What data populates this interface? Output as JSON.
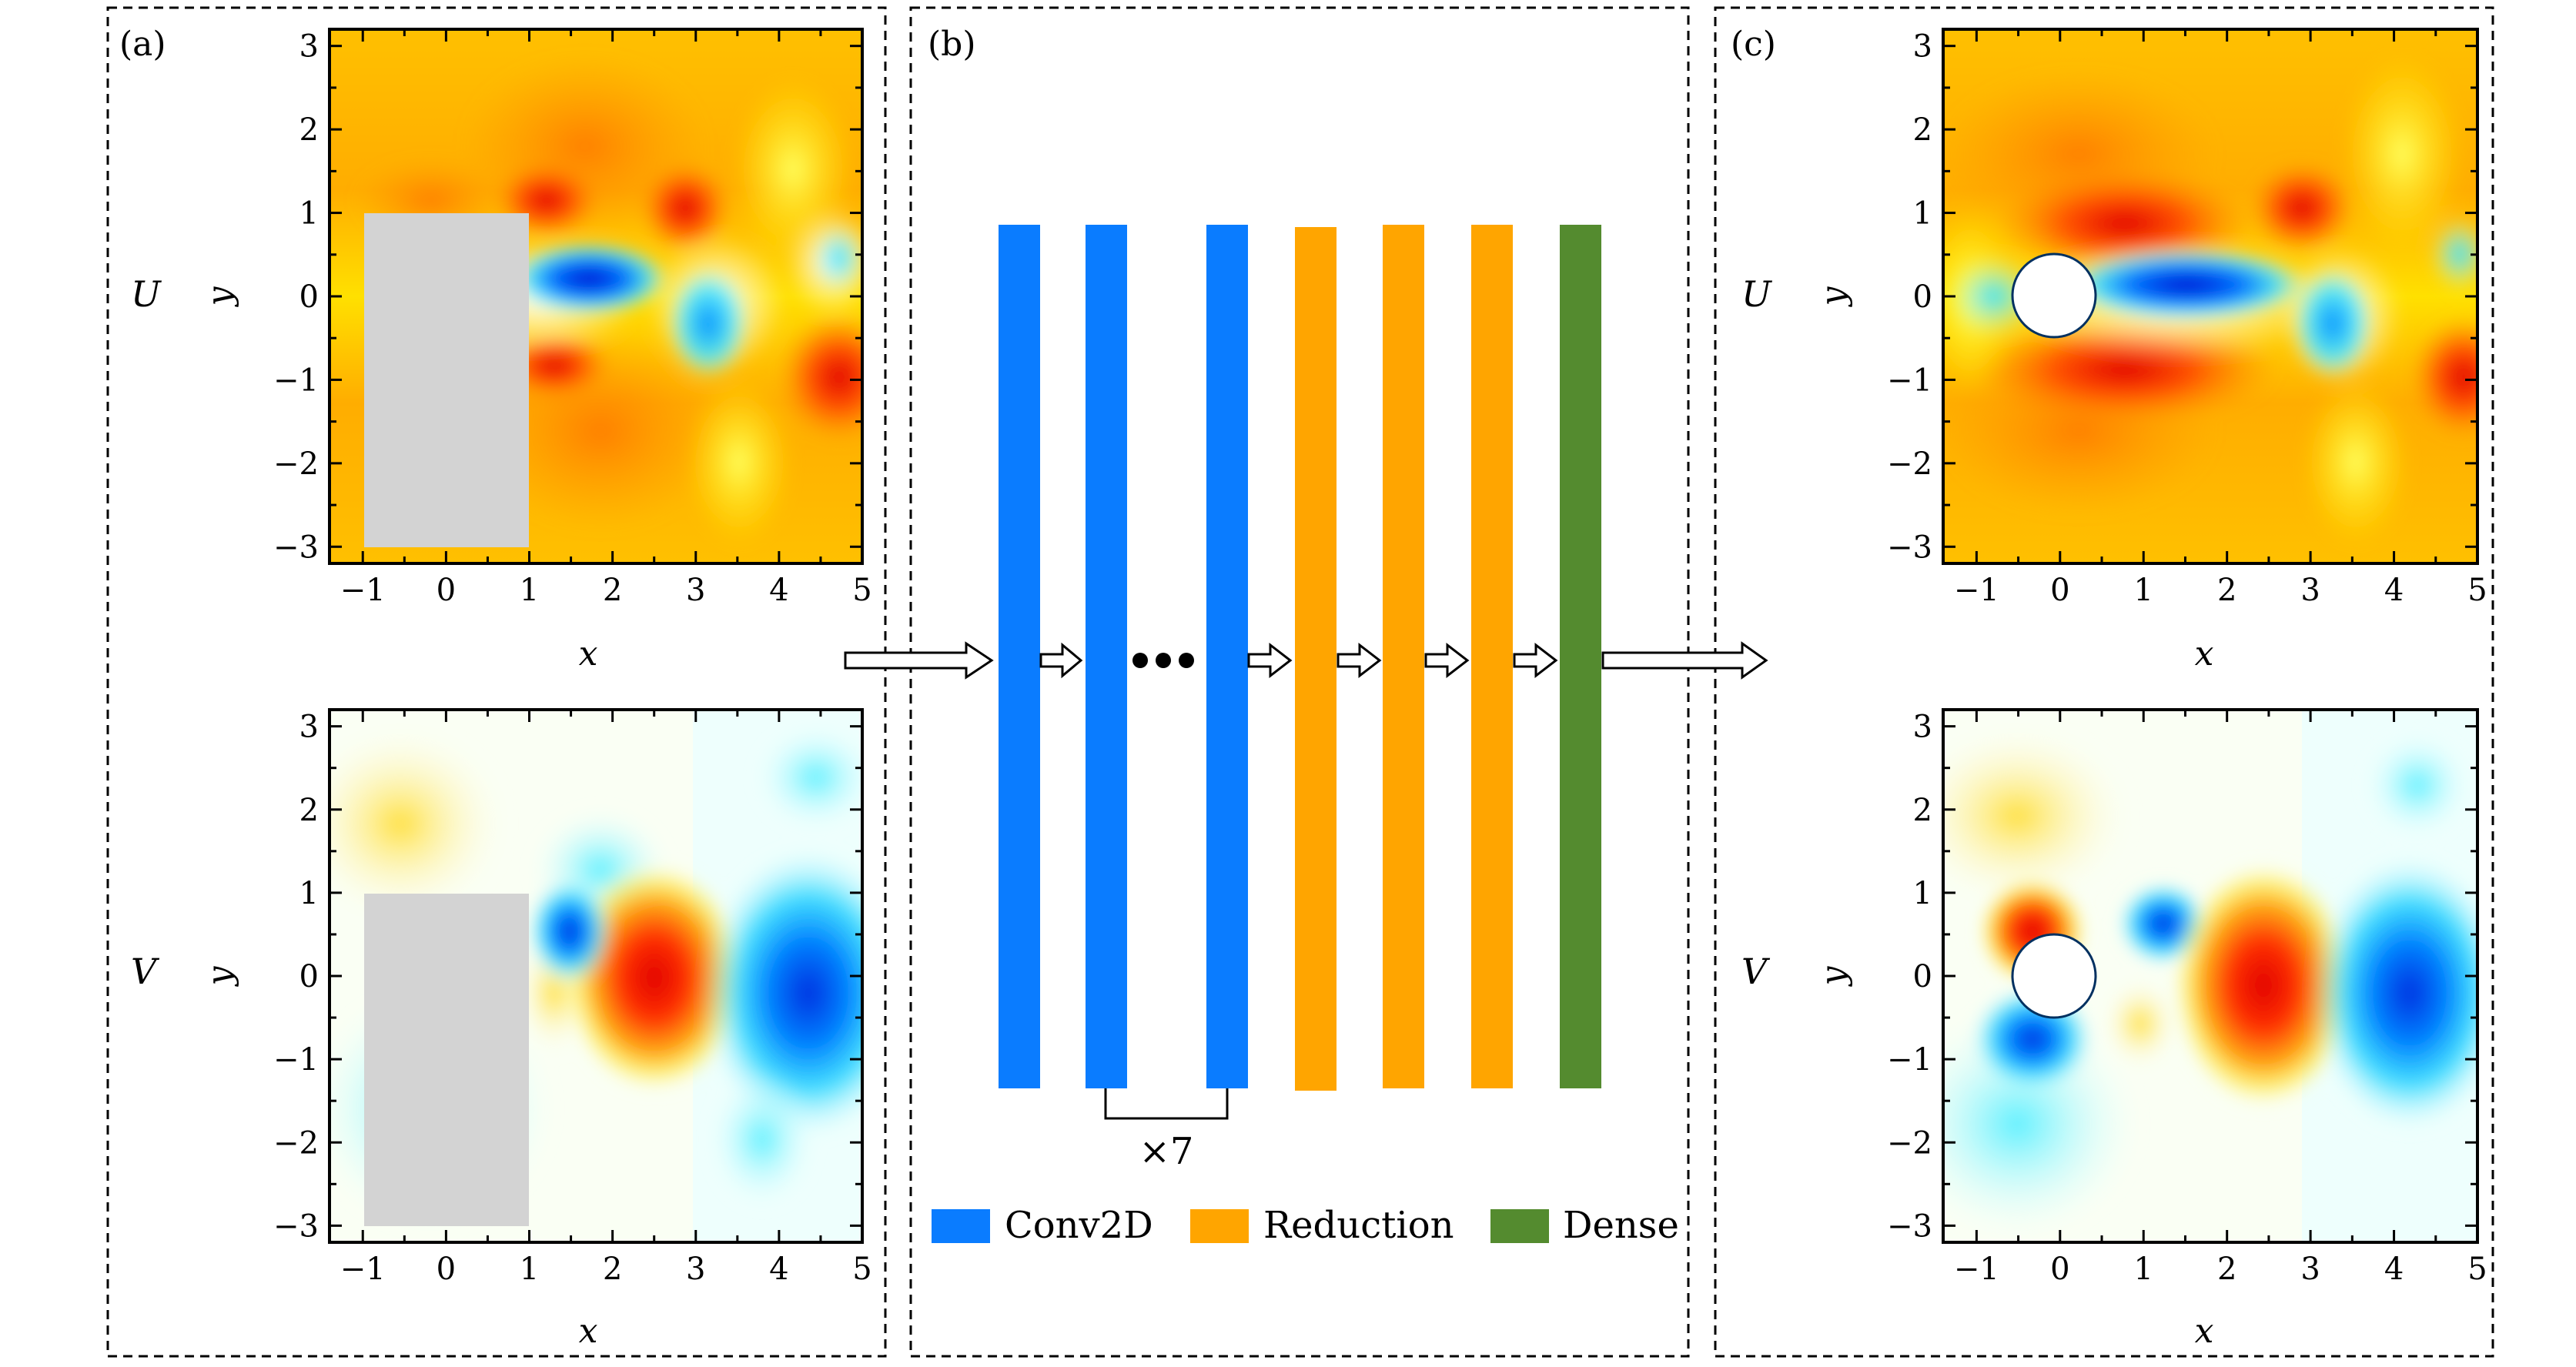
{
  "panels": {
    "a": {
      "label": "(a)"
    },
    "b": {
      "label": "(b)"
    },
    "c": {
      "label": "(c)"
    }
  },
  "fields": {
    "u": {
      "label": "U"
    },
    "v": {
      "label": "V"
    }
  },
  "axes": {
    "xlabel": "x",
    "ylabel": "y",
    "x_ticks": [
      "−1",
      "0",
      "1",
      "2",
      "3",
      "4",
      "5"
    ],
    "y_ticks": [
      "3",
      "2",
      "1",
      "0",
      "−1",
      "−2",
      "−3"
    ]
  },
  "network": {
    "repeat_label": "×7",
    "legend": {
      "conv": "Conv2D",
      "reduction": "Reduction",
      "dense": "Dense"
    }
  },
  "colors": {
    "conv": "#0a7cff",
    "reduction": "#ffa500",
    "dense": "#548b2f",
    "obstacle_rect": "#d3d3d3",
    "obstacle_circle": "#ffffff"
  }
}
